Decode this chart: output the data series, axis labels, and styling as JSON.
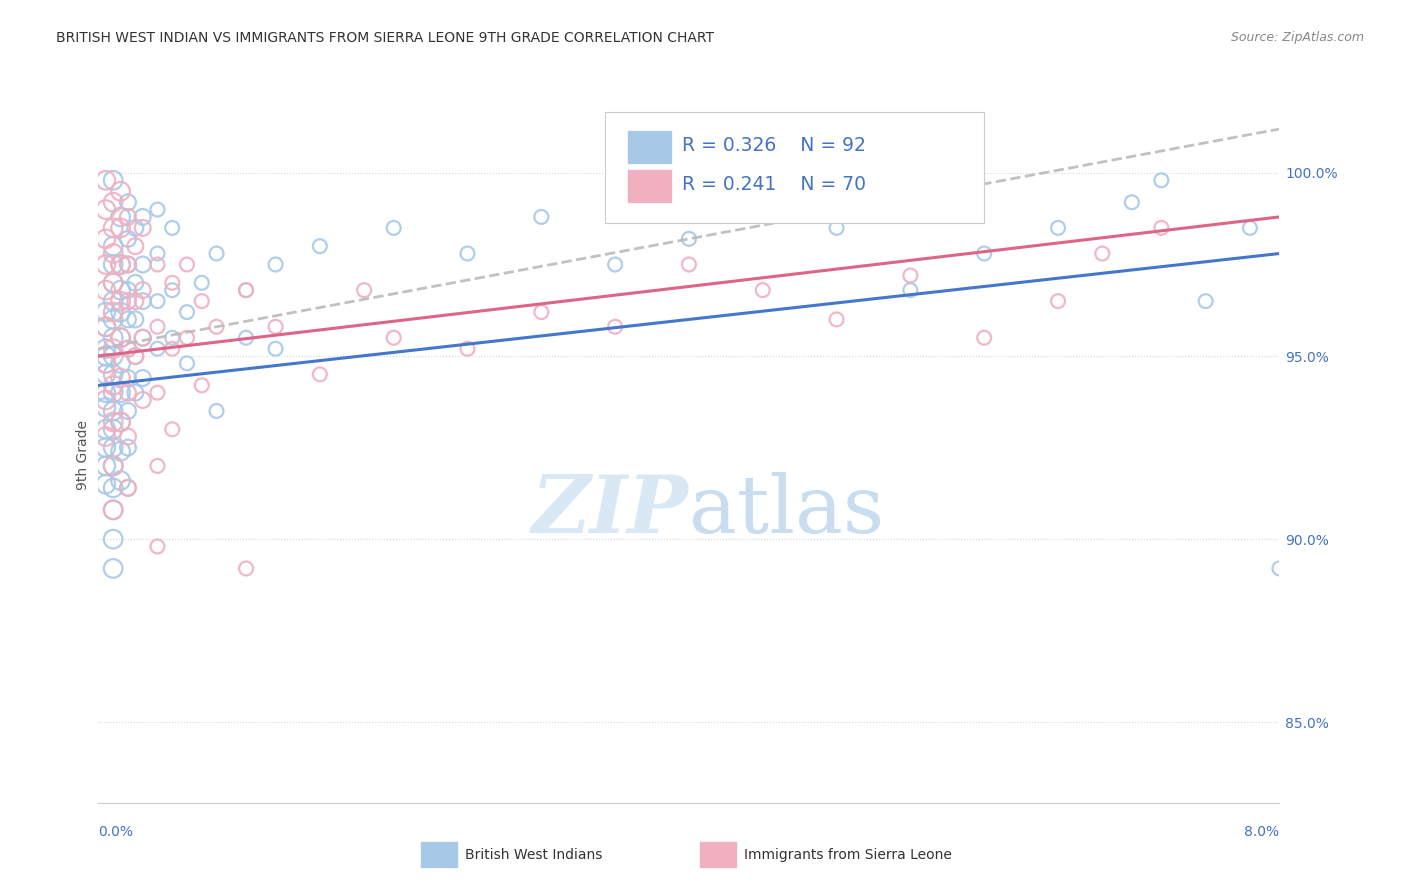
{
  "title": "BRITISH WEST INDIAN VS IMMIGRANTS FROM SIERRA LEONE 9TH GRADE CORRELATION CHART",
  "source": "Source: ZipAtlas.com",
  "ylabel": "9th Grade",
  "right_yticks": [
    "100.0%",
    "95.0%",
    "90.0%",
    "85.0%"
  ],
  "right_ytick_vals": [
    1.0,
    0.95,
    0.9,
    0.85
  ],
  "xmin": 0.0,
  "xmax": 0.08,
  "ymin": 0.828,
  "ymax": 1.018,
  "legend_blue_R": "R = 0.326",
  "legend_blue_N": "N = 92",
  "legend_pink_R": "R = 0.241",
  "legend_pink_N": "N = 70",
  "blue_color": "#a8c8e8",
  "pink_color": "#f0b0c0",
  "blue_line_color": "#4477cc",
  "pink_line_color": "#dd6688",
  "dashed_line_color": "#bbbbbb",
  "blue_scatter": [
    [
      0.0005,
      0.962
    ],
    [
      0.0005,
      0.958
    ],
    [
      0.0005,
      0.95
    ],
    [
      0.0005,
      0.945
    ],
    [
      0.0005,
      0.94
    ],
    [
      0.0005,
      0.936
    ],
    [
      0.0005,
      0.93
    ],
    [
      0.0005,
      0.925
    ],
    [
      0.0005,
      0.92
    ],
    [
      0.0005,
      0.915
    ],
    [
      0.0005,
      0.952
    ],
    [
      0.0005,
      0.948
    ],
    [
      0.001,
      0.998
    ],
    [
      0.001,
      0.98
    ],
    [
      0.001,
      0.975
    ],
    [
      0.001,
      0.97
    ],
    [
      0.001,
      0.965
    ],
    [
      0.001,
      0.96
    ],
    [
      0.001,
      0.955
    ],
    [
      0.001,
      0.95
    ],
    [
      0.001,
      0.945
    ],
    [
      0.001,
      0.94
    ],
    [
      0.001,
      0.935
    ],
    [
      0.001,
      0.93
    ],
    [
      0.001,
      0.925
    ],
    [
      0.001,
      0.92
    ],
    [
      0.001,
      0.914
    ],
    [
      0.001,
      0.908
    ],
    [
      0.001,
      0.9
    ],
    [
      0.001,
      0.892
    ],
    [
      0.0015,
      0.988
    ],
    [
      0.0015,
      0.975
    ],
    [
      0.0015,
      0.968
    ],
    [
      0.0015,
      0.962
    ],
    [
      0.0015,
      0.955
    ],
    [
      0.0015,
      0.948
    ],
    [
      0.0015,
      0.94
    ],
    [
      0.0015,
      0.932
    ],
    [
      0.0015,
      0.924
    ],
    [
      0.0015,
      0.916
    ],
    [
      0.002,
      0.992
    ],
    [
      0.002,
      0.982
    ],
    [
      0.002,
      0.975
    ],
    [
      0.002,
      0.968
    ],
    [
      0.002,
      0.96
    ],
    [
      0.002,
      0.952
    ],
    [
      0.002,
      0.944
    ],
    [
      0.002,
      0.935
    ],
    [
      0.002,
      0.925
    ],
    [
      0.002,
      0.914
    ],
    [
      0.0025,
      0.985
    ],
    [
      0.0025,
      0.97
    ],
    [
      0.0025,
      0.96
    ],
    [
      0.0025,
      0.95
    ],
    [
      0.0025,
      0.94
    ],
    [
      0.003,
      0.988
    ],
    [
      0.003,
      0.975
    ],
    [
      0.003,
      0.965
    ],
    [
      0.003,
      0.955
    ],
    [
      0.003,
      0.944
    ],
    [
      0.004,
      0.99
    ],
    [
      0.004,
      0.978
    ],
    [
      0.004,
      0.965
    ],
    [
      0.004,
      0.952
    ],
    [
      0.005,
      0.985
    ],
    [
      0.005,
      0.968
    ],
    [
      0.005,
      0.955
    ],
    [
      0.006,
      0.962
    ],
    [
      0.006,
      0.948
    ],
    [
      0.007,
      0.97
    ],
    [
      0.008,
      0.978
    ],
    [
      0.01,
      0.968
    ],
    [
      0.01,
      0.955
    ],
    [
      0.012,
      0.975
    ],
    [
      0.015,
      0.98
    ],
    [
      0.02,
      0.985
    ],
    [
      0.025,
      0.978
    ],
    [
      0.03,
      0.988
    ],
    [
      0.035,
      0.975
    ],
    [
      0.04,
      0.982
    ],
    [
      0.045,
      0.99
    ],
    [
      0.05,
      0.985
    ],
    [
      0.055,
      0.968
    ],
    [
      0.06,
      0.978
    ],
    [
      0.065,
      0.985
    ],
    [
      0.07,
      0.992
    ],
    [
      0.072,
      0.998
    ],
    [
      0.075,
      0.965
    ],
    [
      0.078,
      0.985
    ],
    [
      0.08,
      0.892
    ],
    [
      0.012,
      0.952
    ],
    [
      0.008,
      0.935
    ]
  ],
  "pink_scatter": [
    [
      0.0005,
      0.998
    ],
    [
      0.0005,
      0.99
    ],
    [
      0.0005,
      0.982
    ],
    [
      0.0005,
      0.975
    ],
    [
      0.0005,
      0.968
    ],
    [
      0.0005,
      0.958
    ],
    [
      0.0005,
      0.948
    ],
    [
      0.0005,
      0.938
    ],
    [
      0.0005,
      0.928
    ],
    [
      0.001,
      0.992
    ],
    [
      0.001,
      0.985
    ],
    [
      0.001,
      0.978
    ],
    [
      0.001,
      0.97
    ],
    [
      0.001,
      0.962
    ],
    [
      0.001,
      0.952
    ],
    [
      0.001,
      0.942
    ],
    [
      0.001,
      0.932
    ],
    [
      0.001,
      0.92
    ],
    [
      0.001,
      0.908
    ],
    [
      0.0015,
      0.995
    ],
    [
      0.0015,
      0.985
    ],
    [
      0.0015,
      0.975
    ],
    [
      0.0015,
      0.965
    ],
    [
      0.0015,
      0.955
    ],
    [
      0.0015,
      0.944
    ],
    [
      0.0015,
      0.932
    ],
    [
      0.002,
      0.988
    ],
    [
      0.002,
      0.975
    ],
    [
      0.002,
      0.965
    ],
    [
      0.002,
      0.952
    ],
    [
      0.002,
      0.94
    ],
    [
      0.002,
      0.928
    ],
    [
      0.002,
      0.914
    ],
    [
      0.0025,
      0.98
    ],
    [
      0.0025,
      0.965
    ],
    [
      0.0025,
      0.95
    ],
    [
      0.003,
      0.985
    ],
    [
      0.003,
      0.968
    ],
    [
      0.003,
      0.955
    ],
    [
      0.003,
      0.938
    ],
    [
      0.004,
      0.975
    ],
    [
      0.004,
      0.958
    ],
    [
      0.004,
      0.94
    ],
    [
      0.004,
      0.92
    ],
    [
      0.004,
      0.898
    ],
    [
      0.005,
      0.97
    ],
    [
      0.005,
      0.952
    ],
    [
      0.005,
      0.93
    ],
    [
      0.006,
      0.975
    ],
    [
      0.006,
      0.955
    ],
    [
      0.007,
      0.965
    ],
    [
      0.007,
      0.942
    ],
    [
      0.008,
      0.958
    ],
    [
      0.01,
      0.968
    ],
    [
      0.01,
      0.892
    ],
    [
      0.012,
      0.958
    ],
    [
      0.015,
      0.945
    ],
    [
      0.018,
      0.968
    ],
    [
      0.02,
      0.955
    ],
    [
      0.025,
      0.952
    ],
    [
      0.03,
      0.962
    ],
    [
      0.035,
      0.958
    ],
    [
      0.04,
      0.975
    ],
    [
      0.045,
      0.968
    ],
    [
      0.05,
      0.96
    ],
    [
      0.055,
      0.972
    ],
    [
      0.06,
      0.955
    ],
    [
      0.065,
      0.965
    ],
    [
      0.068,
      0.978
    ],
    [
      0.072,
      0.985
    ]
  ],
  "watermark_zip": "ZIP",
  "watermark_atlas": "atlas",
  "watermark_color": "#d8e8f5",
  "bg_color": "#ffffff",
  "grid_color": "#c8d8e8",
  "title_color": "#333333",
  "right_axis_color": "#4472c4",
  "legend_text_color": "#4472c4"
}
